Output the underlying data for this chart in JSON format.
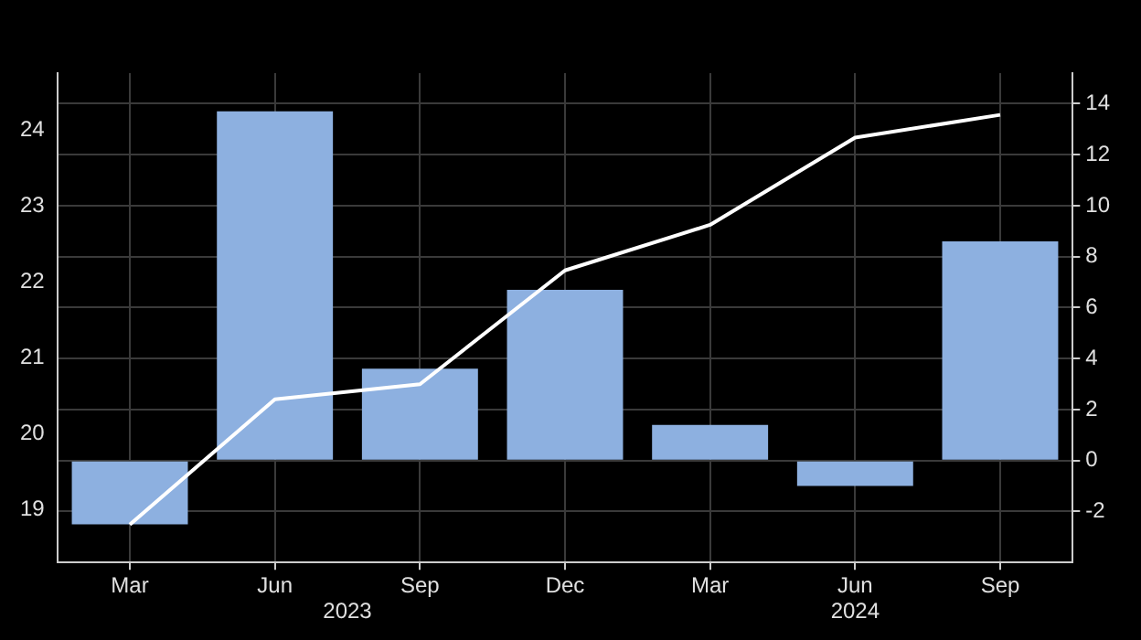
{
  "chart_data": {
    "type": "bar",
    "categories": [
      "Mar",
      "Jun",
      "Sep",
      "Dec",
      "Mar",
      "Jun",
      "Sep"
    ],
    "series": [
      {
        "axis": "y2",
        "color": "#8db0e0",
        "values": [
          -2.5,
          13.7,
          3.6,
          6.7,
          1.4,
          -1.0,
          8.6
        ]
      },
      {
        "type": "line",
        "axis": "y",
        "color": "#ffffff",
        "values": [
          18.8,
          20.45,
          20.65,
          22.15,
          22.75,
          23.9,
          24.2
        ]
      }
    ],
    "ylim": [
      18.3,
      24.75
    ],
    "yticks": [
      19,
      20,
      21,
      22,
      23,
      24
    ],
    "y2lim": [
      -4,
      15.2
    ],
    "y2ticks": [
      -2,
      0,
      2,
      4,
      6,
      8,
      10,
      12,
      14
    ],
    "annotations": [
      "2023",
      "2024"
    ],
    "grid": true,
    "legend": false,
    "marker": "none",
    "line_style": "solid"
  }
}
